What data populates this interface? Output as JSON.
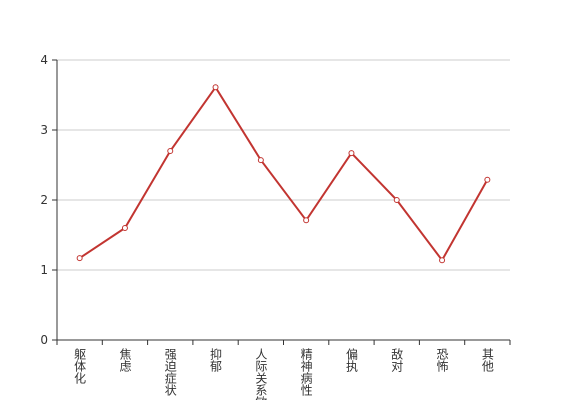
{
  "chart_data": {
    "type": "line",
    "categories": [
      "躯体化",
      "焦虑",
      "强迫症状",
      "抑郁",
      "人际关系敏感",
      "精神病性",
      "偏执",
      "敌对",
      "恐怖",
      "其他"
    ],
    "series": [
      {
        "color": "#c23531",
        "values": [
          1.17,
          1.6,
          2.7,
          3.61,
          2.57,
          1.71,
          2.67,
          2.0,
          1.14,
          2.29
        ]
      }
    ],
    "ylim": [
      0,
      4
    ],
    "yticks": [
      0,
      1,
      2,
      3,
      4
    ],
    "grid": true
  }
}
